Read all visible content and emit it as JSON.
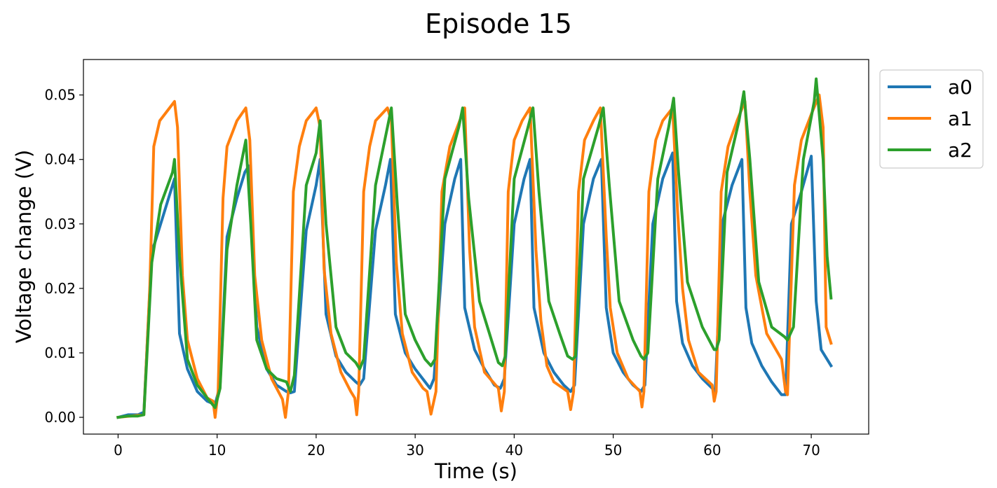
{
  "chart_data": {
    "type": "line",
    "title": "Episode 15",
    "xlabel": "Time (s)",
    "ylabel": "Voltage change (V)",
    "xlim": [
      -3.5,
      75.8
    ],
    "ylim": [
      -0.0026,
      0.0555
    ],
    "xticks": [
      0,
      10,
      20,
      30,
      40,
      50,
      60,
      70
    ],
    "xtick_labels": [
      "0",
      "10",
      "20",
      "30",
      "40",
      "50",
      "60",
      "70"
    ],
    "yticks": [
      0.0,
      0.01,
      0.02,
      0.03,
      0.04,
      0.05
    ],
    "ytick_labels": [
      "0.00",
      "0.01",
      "0.02",
      "0.03",
      "0.04",
      "0.05"
    ],
    "grid": false,
    "legend_position": "outside-top-right",
    "series": [
      {
        "name": "a0",
        "color": "#1f77b4",
        "x": [
          0,
          1,
          2,
          2.6,
          3.4,
          3.7,
          4.5,
          5.5,
          5.7,
          6.2,
          7,
          8,
          9,
          9.8,
          10.3,
          11,
          12,
          12.8,
          13.2,
          14,
          15,
          16,
          17,
          17.4,
          17.8,
          19,
          20,
          20.4,
          21,
          22,
          23,
          24,
          24.4,
          24.8,
          26,
          27,
          27.5,
          28,
          29,
          30,
          31,
          31.5,
          31.9,
          33,
          34,
          34.6,
          35,
          36,
          37,
          38,
          38.6,
          39,
          40,
          41,
          41.6,
          42,
          43,
          44,
          45,
          45.7,
          46.1,
          47,
          48,
          48.8,
          49.3,
          50,
          51,
          52,
          52.8,
          53.2,
          54,
          55,
          56,
          56.4,
          57,
          58,
          59,
          60,
          60.3,
          61,
          62,
          63,
          63.4,
          64,
          65,
          66,
          67,
          67.4,
          68,
          69,
          70,
          70.5,
          71,
          72
        ],
        "y": [
          0.0,
          0.0004,
          0.0004,
          0.0008,
          0.026,
          0.027,
          0.031,
          0.036,
          0.037,
          0.013,
          0.0075,
          0.004,
          0.0025,
          0.002,
          0.005,
          0.028,
          0.034,
          0.038,
          0.039,
          0.014,
          0.0075,
          0.005,
          0.004,
          0.0038,
          0.004,
          0.029,
          0.036,
          0.04,
          0.016,
          0.0095,
          0.007,
          0.0055,
          0.005,
          0.006,
          0.029,
          0.036,
          0.04,
          0.016,
          0.01,
          0.0075,
          0.0055,
          0.0045,
          0.006,
          0.03,
          0.037,
          0.04,
          0.017,
          0.0105,
          0.0075,
          0.005,
          0.0045,
          0.006,
          0.03,
          0.037,
          0.04,
          0.017,
          0.01,
          0.007,
          0.005,
          0.004,
          0.005,
          0.03,
          0.037,
          0.04,
          0.017,
          0.01,
          0.007,
          0.005,
          0.004,
          0.005,
          0.03,
          0.037,
          0.041,
          0.018,
          0.0115,
          0.008,
          0.006,
          0.0045,
          0.004,
          0.03,
          0.036,
          0.04,
          0.017,
          0.0115,
          0.008,
          0.0055,
          0.0035,
          0.0035,
          0.03,
          0.035,
          0.0405,
          0.018,
          0.0105,
          0.008
        ]
      },
      {
        "name": "a1",
        "color": "#ff7f0e",
        "x": [
          0,
          2.6,
          3.2,
          3.6,
          4.2,
          5.2,
          5.7,
          6,
          6.5,
          7,
          8,
          9,
          9.6,
          9.8,
          10.1,
          10.6,
          11,
          12,
          12.9,
          13.3,
          13.8,
          14.5,
          15.5,
          16.6,
          16.9,
          17.2,
          17.7,
          18.3,
          19,
          20,
          20.4,
          20.8,
          21.5,
          22.5,
          23.5,
          23.9,
          24.1,
          24.3,
          24.8,
          25.4,
          26,
          27.2,
          27.6,
          28.1,
          28.7,
          29.7,
          30.8,
          31.2,
          31.6,
          32.1,
          32.7,
          33.5,
          34.5,
          35,
          35.5,
          36,
          37,
          38.4,
          38.7,
          39,
          39.4,
          40,
          40.8,
          41.6,
          42.2,
          42.7,
          43.3,
          44,
          45.4,
          45.7,
          46,
          46.5,
          47.1,
          48,
          48.7,
          49.3,
          49.7,
          50.4,
          51.5,
          52.7,
          52.9,
          53.1,
          53.6,
          54.3,
          55,
          56,
          56.5,
          57,
          57.6,
          58.6,
          60,
          60.2,
          60.4,
          60.9,
          61.6,
          62.5,
          63.3,
          63.8,
          64.4,
          65.5,
          67,
          67.4,
          67.6,
          68.3,
          69,
          70,
          70.8,
          71.2,
          71.5,
          72
        ],
        "y": [
          0.0,
          0.0004,
          0.02,
          0.042,
          0.046,
          0.048,
          0.049,
          0.045,
          0.022,
          0.012,
          0.006,
          0.003,
          0.0025,
          0.0,
          0.004,
          0.034,
          0.042,
          0.046,
          0.048,
          0.043,
          0.022,
          0.012,
          0.006,
          0.0028,
          0.0,
          0.004,
          0.035,
          0.042,
          0.046,
          0.048,
          0.045,
          0.023,
          0.013,
          0.007,
          0.004,
          0.003,
          0.0004,
          0.004,
          0.035,
          0.042,
          0.046,
          0.048,
          0.046,
          0.024,
          0.013,
          0.007,
          0.0045,
          0.004,
          0.0005,
          0.004,
          0.035,
          0.042,
          0.046,
          0.048,
          0.026,
          0.014,
          0.007,
          0.0045,
          0.001,
          0.004,
          0.035,
          0.043,
          0.046,
          0.048,
          0.026,
          0.015,
          0.008,
          0.0055,
          0.004,
          0.0012,
          0.004,
          0.035,
          0.043,
          0.046,
          0.048,
          0.028,
          0.017,
          0.01,
          0.006,
          0.004,
          0.0016,
          0.004,
          0.035,
          0.043,
          0.046,
          0.048,
          0.032,
          0.02,
          0.012,
          0.007,
          0.005,
          0.0025,
          0.004,
          0.035,
          0.042,
          0.046,
          0.049,
          0.035,
          0.022,
          0.013,
          0.009,
          0.004,
          0.0035,
          0.036,
          0.043,
          0.047,
          0.05,
          0.045,
          0.014,
          0.0115
        ]
      },
      {
        "name": "a2",
        "color": "#2ca02c",
        "x": [
          0,
          1,
          2,
          2.6,
          3.4,
          4.3,
          5.5,
          5.7,
          6.2,
          7,
          8,
          9,
          9.8,
          10.3,
          11,
          12,
          12.9,
          13.4,
          14,
          15,
          16,
          17,
          17.4,
          17.8,
          19,
          20,
          20.4,
          21,
          22,
          23,
          24,
          24.4,
          24.8,
          26,
          27.2,
          27.6,
          28.2,
          29,
          30,
          31,
          31.6,
          32,
          33,
          34.4,
          34.8,
          35.4,
          36.5,
          37.5,
          38.4,
          38.8,
          39.1,
          40,
          41.4,
          41.9,
          42.5,
          43.5,
          44.6,
          45.4,
          45.9,
          46.2,
          47,
          48.5,
          49,
          49.6,
          50.6,
          52,
          52.8,
          53.1,
          53.5,
          54.5,
          55.6,
          56.1,
          56.6,
          57.5,
          59,
          60.2,
          60.4,
          60.7,
          61.5,
          62.7,
          63.2,
          63.8,
          64.7,
          66,
          67.3,
          67.6,
          68.2,
          69.2,
          70.3,
          70.5,
          71.2,
          71.6,
          72
        ],
        "y": [
          0.0,
          0.0002,
          0.0002,
          0.0004,
          0.024,
          0.033,
          0.038,
          0.04,
          0.025,
          0.009,
          0.005,
          0.003,
          0.0015,
          0.0045,
          0.026,
          0.036,
          0.043,
          0.03,
          0.012,
          0.0075,
          0.006,
          0.0055,
          0.004,
          0.0065,
          0.036,
          0.041,
          0.046,
          0.03,
          0.014,
          0.01,
          0.0085,
          0.0075,
          0.009,
          0.036,
          0.045,
          0.048,
          0.033,
          0.016,
          0.012,
          0.009,
          0.008,
          0.009,
          0.037,
          0.045,
          0.048,
          0.034,
          0.018,
          0.013,
          0.0085,
          0.008,
          0.0095,
          0.037,
          0.045,
          0.048,
          0.035,
          0.018,
          0.013,
          0.0095,
          0.009,
          0.0095,
          0.037,
          0.045,
          0.048,
          0.036,
          0.018,
          0.012,
          0.0095,
          0.009,
          0.01,
          0.037,
          0.045,
          0.0495,
          0.038,
          0.021,
          0.014,
          0.0105,
          0.0105,
          0.012,
          0.038,
          0.046,
          0.0505,
          0.04,
          0.021,
          0.014,
          0.0125,
          0.012,
          0.014,
          0.04,
          0.049,
          0.0525,
          0.04,
          0.025,
          0.0185
        ]
      }
    ]
  }
}
